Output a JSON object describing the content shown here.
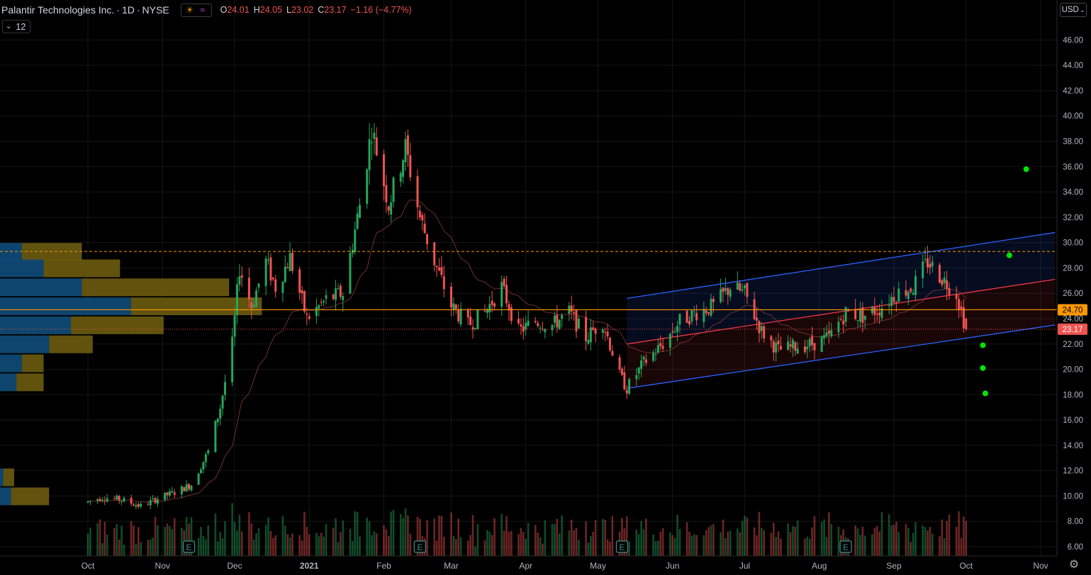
{
  "header": {
    "symbol_name": "Palantir Technologies Inc.",
    "interval": "1D",
    "exchange": "NYSE",
    "open_label": "O",
    "open": "24.01",
    "high_label": "H",
    "high": "24.05",
    "low_label": "L",
    "low": "23.02",
    "close_label": "C",
    "close": "23.17",
    "change": "−1.16 (−4.77%)"
  },
  "indicator": {
    "value": "12"
  },
  "currency_button": "USD",
  "colors": {
    "background": "#000000",
    "up": "#26a65b",
    "down": "#ef5350",
    "price_line": "#ff9800",
    "channel": "#2962ff",
    "regression": "#f23645",
    "dot": "#00e600",
    "vp_up": "#0e4d7a",
    "vp_down": "#6b5b10"
  },
  "chart_data": {
    "type": "candlestick",
    "title": "Palantir Technologies Inc. · 1D · NYSE",
    "y_axis": {
      "min": 5.5,
      "max": 47.5,
      "ticks": [
        "6.00",
        "8.00",
        "10.00",
        "12.00",
        "14.00",
        "16.00",
        "18.00",
        "20.00",
        "22.00",
        "24.00",
        "26.00",
        "28.00",
        "30.00",
        "32.00",
        "34.00",
        "36.00",
        "38.00",
        "40.00",
        "42.00",
        "44.00",
        "46.00"
      ]
    },
    "x_axis": {
      "tick_labels": [
        "Oct",
        "Nov",
        "Dec",
        "2021",
        "Feb",
        "Mar",
        "Apr",
        "May",
        "Jun",
        "Jul",
        "Aug",
        "Sep",
        "Oct",
        "Nov"
      ],
      "tick_dates": [
        "2020-10-01",
        "2020-11-01",
        "2020-12-01",
        "2021-01-01",
        "2021-02-01",
        "2021-03-01",
        "2021-04-01",
        "2021-05-01",
        "2021-06-01",
        "2021-07-01",
        "2021-08-01",
        "2021-09-01",
        "2021-10-01",
        "2021-11-01"
      ]
    },
    "close_path": [
      [
        "2020-09-30",
        9.5
      ],
      [
        "2020-10-07",
        9.9
      ],
      [
        "2020-10-15",
        9.7
      ],
      [
        "2020-10-23",
        9.2
      ],
      [
        "2020-10-30",
        9.8
      ],
      [
        "2020-11-06",
        10.3
      ],
      [
        "2020-11-13",
        10.9
      ],
      [
        "2020-11-20",
        13.5
      ],
      [
        "2020-11-25",
        17.0
      ],
      [
        "2020-11-30",
        22.0
      ],
      [
        "2020-12-03",
        28.0
      ],
      [
        "2020-12-08",
        25.0
      ],
      [
        "2020-12-14",
        28.5
      ],
      [
        "2020-12-18",
        26.5
      ],
      [
        "2020-12-24",
        28.8
      ],
      [
        "2020-12-31",
        24.0
      ],
      [
        "2021-01-08",
        25.5
      ],
      [
        "2021-01-15",
        26.0
      ],
      [
        "2021-01-22",
        33.0
      ],
      [
        "2021-01-27",
        39.0
      ],
      [
        "2021-02-03",
        33.0
      ],
      [
        "2021-02-10",
        37.5
      ],
      [
        "2021-02-16",
        32.0
      ],
      [
        "2021-02-22",
        28.5
      ],
      [
        "2021-03-01",
        25.0
      ],
      [
        "2021-03-08",
        23.5
      ],
      [
        "2021-03-15",
        24.5
      ],
      [
        "2021-03-22",
        26.5
      ],
      [
        "2021-03-29",
        23.0
      ],
      [
        "2021-04-05",
        23.8
      ],
      [
        "2021-04-12",
        23.5
      ],
      [
        "2021-04-19",
        24.5
      ],
      [
        "2021-04-26",
        22.5
      ],
      [
        "2021-05-03",
        23.8
      ],
      [
        "2021-05-10",
        19.5
      ],
      [
        "2021-05-13",
        18.5
      ],
      [
        "2021-05-20",
        20.5
      ],
      [
        "2021-05-28",
        22.0
      ],
      [
        "2021-06-04",
        23.8
      ],
      [
        "2021-06-11",
        24.5
      ],
      [
        "2021-06-18",
        25.0
      ],
      [
        "2021-06-25",
        26.5
      ],
      [
        "2021-07-01",
        26.0
      ],
      [
        "2021-07-08",
        23.0
      ],
      [
        "2021-07-15",
        21.5
      ],
      [
        "2021-07-22",
        21.8
      ],
      [
        "2021-07-29",
        22.0
      ],
      [
        "2021-08-05",
        22.5
      ],
      [
        "2021-08-12",
        24.5
      ],
      [
        "2021-08-19",
        24.2
      ],
      [
        "2021-08-26",
        24.8
      ],
      [
        "2021-09-02",
        26.0
      ],
      [
        "2021-09-09",
        26.5
      ],
      [
        "2021-09-15",
        28.5
      ],
      [
        "2021-09-22",
        27.0
      ],
      [
        "2021-09-27",
        26.0
      ],
      [
        "2021-10-01",
        23.17
      ]
    ],
    "last_price": 23.17,
    "price_line": 24.7,
    "resistance_line": 29.3,
    "price_labels": [
      "24.70",
      "23.17"
    ],
    "regression_channel": {
      "start_date": "2021-05-13",
      "end_date": "2021-11-07",
      "upper": [
        25.6,
        30.8
      ],
      "mid": [
        22.0,
        27.1
      ],
      "lower": [
        18.5,
        23.5
      ]
    },
    "projection_dots": [
      [
        "2021-10-19",
        29.0
      ],
      [
        "2021-10-26",
        35.8
      ],
      [
        "2021-10-08",
        21.9
      ],
      [
        "2021-10-08",
        20.1
      ],
      [
        "2021-10-09",
        18.1
      ]
    ],
    "volume_profile": [
      {
        "price": 29.3,
        "up": 0.02,
        "down": 0.055
      },
      {
        "price": 28.0,
        "up": 0.04,
        "down": 0.07
      },
      {
        "price": 26.5,
        "up": 0.075,
        "down": 0.135
      },
      {
        "price": 25.0,
        "up": 0.12,
        "down": 0.12
      },
      {
        "price": 23.5,
        "up": 0.065,
        "down": 0.085
      },
      {
        "price": 22.0,
        "up": 0.045,
        "down": 0.04
      },
      {
        "price": 20.5,
        "up": 0.02,
        "down": 0.02
      },
      {
        "price": 19.0,
        "up": 0.015,
        "down": 0.025
      },
      {
        "price": 10.0,
        "up": 0.01,
        "down": 0.035
      },
      {
        "price": 11.5,
        "up": 0.003,
        "down": 0.01
      }
    ],
    "earnings_markers": [
      "2020-11-12",
      "2021-02-16",
      "2021-05-11",
      "2021-08-12"
    ],
    "earnings_label": "E"
  }
}
